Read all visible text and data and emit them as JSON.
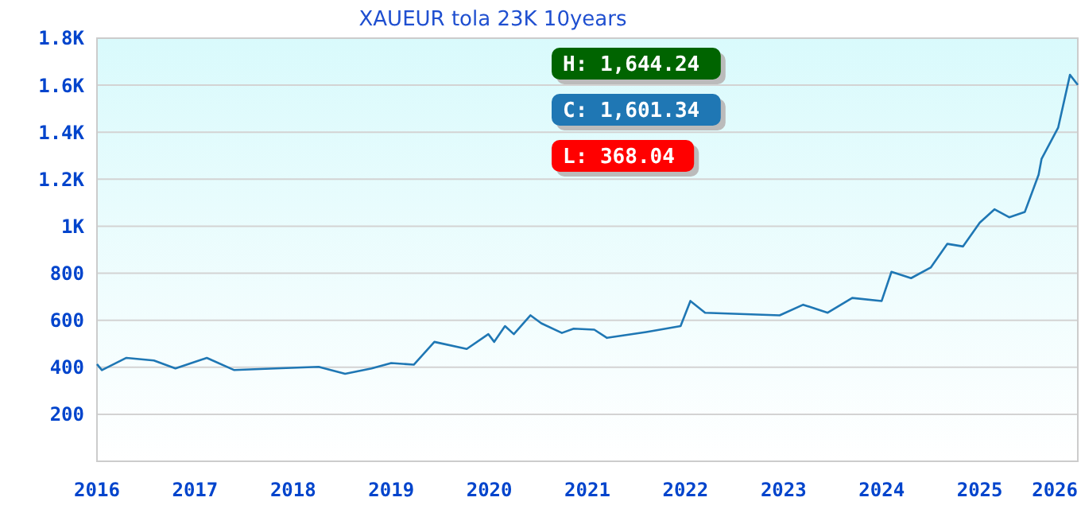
{
  "chart_data": {
    "type": "line",
    "title": "XAUEUR tola 23K 10years",
    "x": [
      2016.0,
      2016.05,
      2016.3,
      2016.58,
      2016.8,
      2017.12,
      2017.4,
      2017.82,
      2018.26,
      2018.53,
      2018.8,
      2019.0,
      2019.23,
      2019.44,
      2019.77,
      2019.99,
      2020.05,
      2020.16,
      2020.25,
      2020.42,
      2020.53,
      2020.74,
      2020.86,
      2021.07,
      2021.2,
      2021.6,
      2021.95,
      2022.05,
      2022.2,
      2022.96,
      2023.2,
      2023.45,
      2023.7,
      2024.0,
      2024.1,
      2024.3,
      2024.5,
      2024.67,
      2024.83,
      2025.0,
      2025.15,
      2025.3,
      2025.46,
      2025.6,
      2025.63,
      2025.8,
      2025.92,
      2026.0
    ],
    "series": [
      {
        "color": "#1f77b4",
        "values": [
          413,
          388,
          440,
          429,
          395,
          440,
          388,
          395,
          402,
          372,
          395,
          418,
          411,
          508,
          478,
          541,
          508,
          575,
          541,
          621,
          587,
          546,
          564,
          560,
          525,
          550,
          575,
          682,
          632,
          621,
          666,
          632,
          695,
          682,
          806,
          779,
          824,
          925,
          914,
          1015,
          1072,
          1038,
          1061,
          1219,
          1286,
          1420,
          1644,
          1601
        ]
      }
    ],
    "xlim": [
      2016,
      2026
    ],
    "xticks": [
      2016,
      2017,
      2018,
      2019,
      2020,
      2021,
      2022,
      2023,
      2024,
      2025,
      2026
    ],
    "ylim": [
      0,
      1800
    ],
    "yticks": [
      {
        "value": 200,
        "label": "200"
      },
      {
        "value": 400,
        "label": "400"
      },
      {
        "value": 600,
        "label": "600"
      },
      {
        "value": 800,
        "label": "800"
      },
      {
        "value": 1000,
        "label": "1K"
      },
      {
        "value": 1200,
        "label": "1.2K"
      },
      {
        "value": 1400,
        "label": "1.4K"
      },
      {
        "value": 1600,
        "label": "1.6K"
      },
      {
        "value": 1800,
        "label": "1.8K"
      }
    ],
    "grid": "y",
    "annotations": [
      "H: 1,644.24",
      "C: 1,601.34",
      "L: 368.04"
    ]
  }
}
